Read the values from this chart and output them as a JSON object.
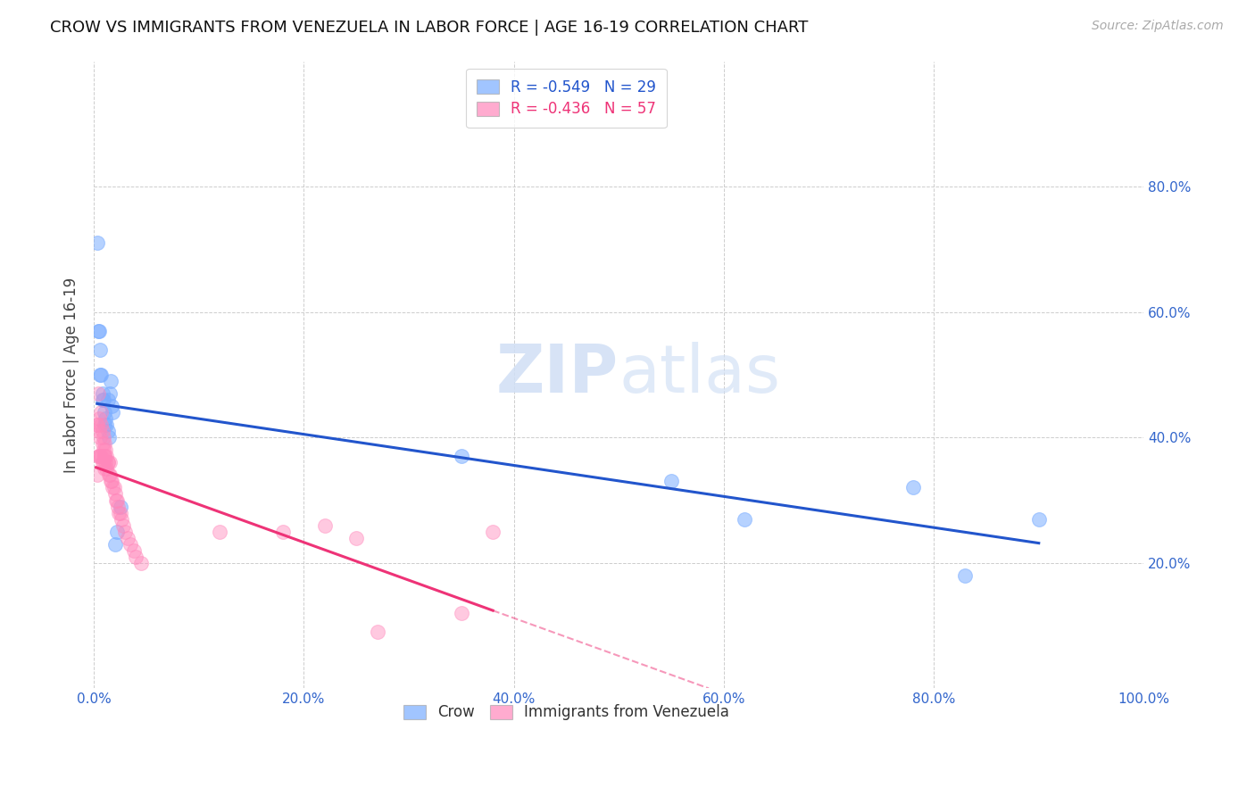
{
  "title": "CROW VS IMMIGRANTS FROM VENEZUELA IN LABOR FORCE | AGE 16-19 CORRELATION CHART",
  "source": "Source: ZipAtlas.com",
  "ylabel": "In Labor Force | Age 16-19",
  "xlim": [
    0,
    100
  ],
  "ylim": [
    0,
    100
  ],
  "xticks": [
    0,
    20,
    40,
    60,
    80,
    100
  ],
  "yticks": [
    20,
    40,
    60,
    80
  ],
  "xtick_labels": [
    "0.0%",
    "20.0%",
    "40.0%",
    "60.0%",
    "80.0%",
    "100.0%"
  ],
  "ytick_labels": [
    "20.0%",
    "40.0%",
    "60.0%",
    "80.0%"
  ],
  "crow_R": -0.549,
  "crow_N": 29,
  "venez_R": -0.436,
  "venez_N": 57,
  "crow_color": "#7aadff",
  "venez_color": "#ff88bb",
  "crow_line_color": "#2255cc",
  "venez_line_color": "#ee3377",
  "watermark_color": "#d0dff5",
  "crow_x": [
    0.3,
    0.5,
    0.6,
    0.7,
    0.8,
    0.9,
    1.0,
    1.1,
    1.2,
    1.3,
    1.4,
    1.5,
    1.6,
    1.7,
    1.8,
    2.0,
    2.2,
    2.5,
    0.4,
    0.6,
    0.8,
    1.0,
    1.3,
    35,
    55,
    62,
    78,
    83,
    90
  ],
  "crow_y": [
    71,
    57,
    54,
    50,
    47,
    46,
    44,
    43,
    42,
    41,
    40,
    47,
    49,
    45,
    44,
    23,
    25,
    29,
    57,
    50,
    46,
    42,
    46,
    37,
    33,
    27,
    32,
    18,
    27
  ],
  "venez_x": [
    0.2,
    0.3,
    0.3,
    0.4,
    0.4,
    0.5,
    0.5,
    0.5,
    0.6,
    0.6,
    0.7,
    0.7,
    0.7,
    0.8,
    0.8,
    0.8,
    0.9,
    0.9,
    0.9,
    1.0,
    1.0,
    1.0,
    1.0,
    1.1,
    1.1,
    1.2,
    1.2,
    1.3,
    1.3,
    1.4,
    1.5,
    1.5,
    1.6,
    1.7,
    1.8,
    1.9,
    2.0,
    2.1,
    2.2,
    2.3,
    2.4,
    2.5,
    2.6,
    2.8,
    3.0,
    3.2,
    3.5,
    3.8,
    4.0,
    4.5,
    12,
    18,
    22,
    25,
    27,
    35,
    38
  ],
  "venez_y": [
    42,
    42,
    34,
    47,
    37,
    43,
    41,
    37,
    40,
    37,
    44,
    42,
    37,
    41,
    39,
    36,
    40,
    38,
    36,
    39,
    37,
    35,
    37,
    38,
    36,
    37,
    35,
    36,
    36,
    34,
    36,
    34,
    33,
    33,
    32,
    32,
    31,
    30,
    30,
    29,
    28,
    28,
    27,
    26,
    25,
    24,
    23,
    22,
    21,
    20,
    25,
    25,
    26,
    24,
    9,
    12,
    25
  ]
}
